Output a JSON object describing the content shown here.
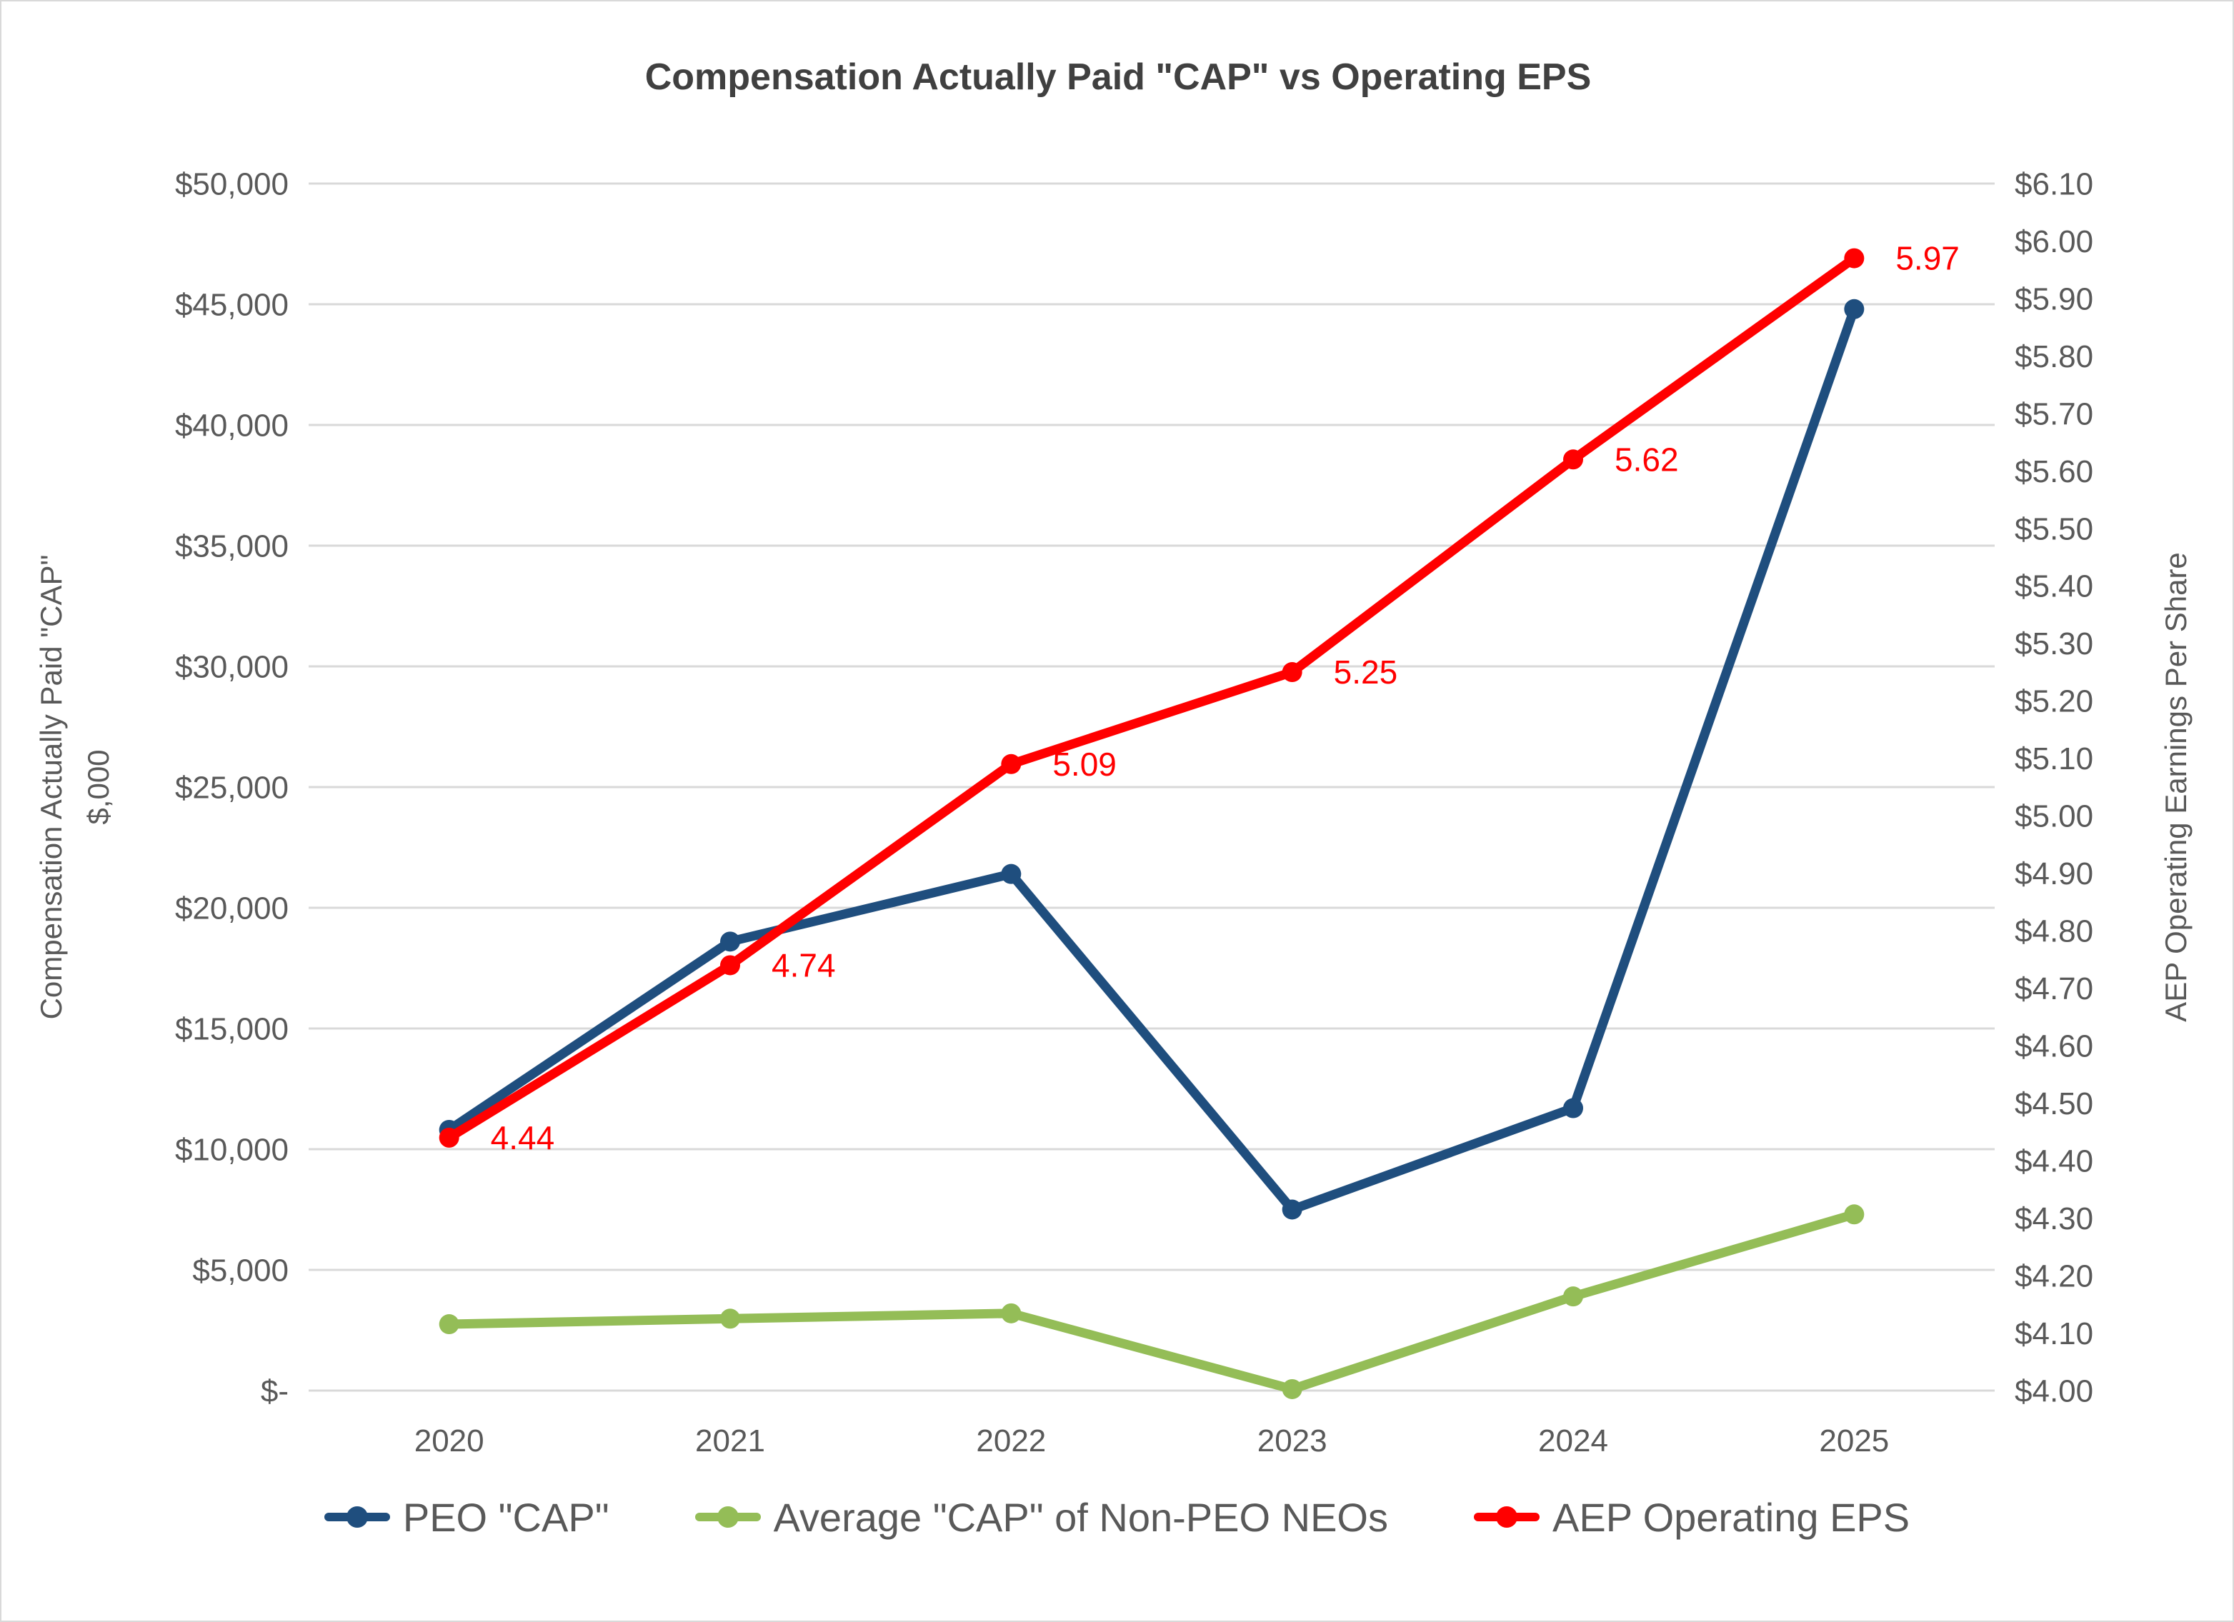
{
  "title": "Compensation Actually Paid \"CAP\" vs Operating EPS",
  "colors": {
    "background": "#FFFFFF",
    "border": "#D9D9D9",
    "gridline": "#D9D9D9",
    "tick_text": "#595959",
    "title_text": "#404040",
    "legend_text": "#595959"
  },
  "chart_data": {
    "type": "line",
    "title": "Compensation Actually Paid \"CAP\" vs Operating EPS",
    "categories": [
      "2020",
      "2021",
      "2022",
      "2023",
      "2024",
      "2025"
    ],
    "series": [
      {
        "name": "PEO \"CAP\"",
        "axis": "left",
        "color": "#1F4E7E",
        "values": [
          10800,
          18600,
          21400,
          7500,
          11700,
          44800
        ],
        "point_labels": false
      },
      {
        "name": "Average \"CAP\" of Non-PEO NEOs",
        "axis": "left",
        "color": "#94BD57",
        "values": [
          2750,
          2980,
          3200,
          60,
          3900,
          7300
        ],
        "point_labels": false
      },
      {
        "name": "AEP Operating EPS",
        "axis": "right",
        "color": "#FF0000",
        "values": [
          4.44,
          4.74,
          5.09,
          5.25,
          5.62,
          5.97
        ],
        "point_labels": true
      }
    ],
    "left_axis": {
      "title_line1": "Compensation Actually Paid \"CAP\"",
      "title_line2": "$,000",
      "min": 0,
      "max": 50000,
      "step": 5000,
      "zero_tick_label": "$-",
      "tick_labels": [
        "$-",
        "$5,000",
        "$10,000",
        "$15,000",
        "$20,000",
        "$25,000",
        "$30,000",
        "$35,000",
        "$40,000",
        "$45,000",
        "$50,000"
      ]
    },
    "right_axis": {
      "title": "AEP Operating Earnings Per Share",
      "min": 4.0,
      "max": 6.1,
      "step": 0.1,
      "top_tick_label": "$6.10",
      "bottom_tick_label": "$4.00"
    },
    "grid": "horizontal",
    "legend_position": "bottom"
  }
}
